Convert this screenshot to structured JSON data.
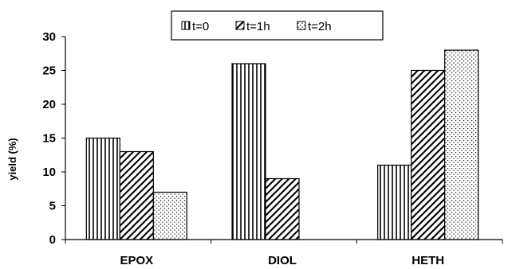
{
  "chart_data": {
    "type": "bar",
    "title": "",
    "xlabel": "",
    "ylabel": "yield (%)",
    "ylim": [
      0,
      30
    ],
    "yticks": [
      0,
      5,
      10,
      15,
      20,
      25,
      30
    ],
    "grid": false,
    "legend_position": "top-center",
    "categories": [
      "EPOX",
      "DIOL",
      "HETH"
    ],
    "series": [
      {
        "name": "t=0",
        "values": [
          15,
          26,
          11
        ],
        "pattern": "vertical-stripes"
      },
      {
        "name": "t=1h",
        "values": [
          13,
          9,
          25
        ],
        "pattern": "diagonal-stripes"
      },
      {
        "name": "t=2h",
        "values": [
          7,
          0,
          28
        ],
        "pattern": "dots"
      }
    ],
    "colors": {
      "ink": "#000000",
      "background": "#ffffff"
    }
  }
}
